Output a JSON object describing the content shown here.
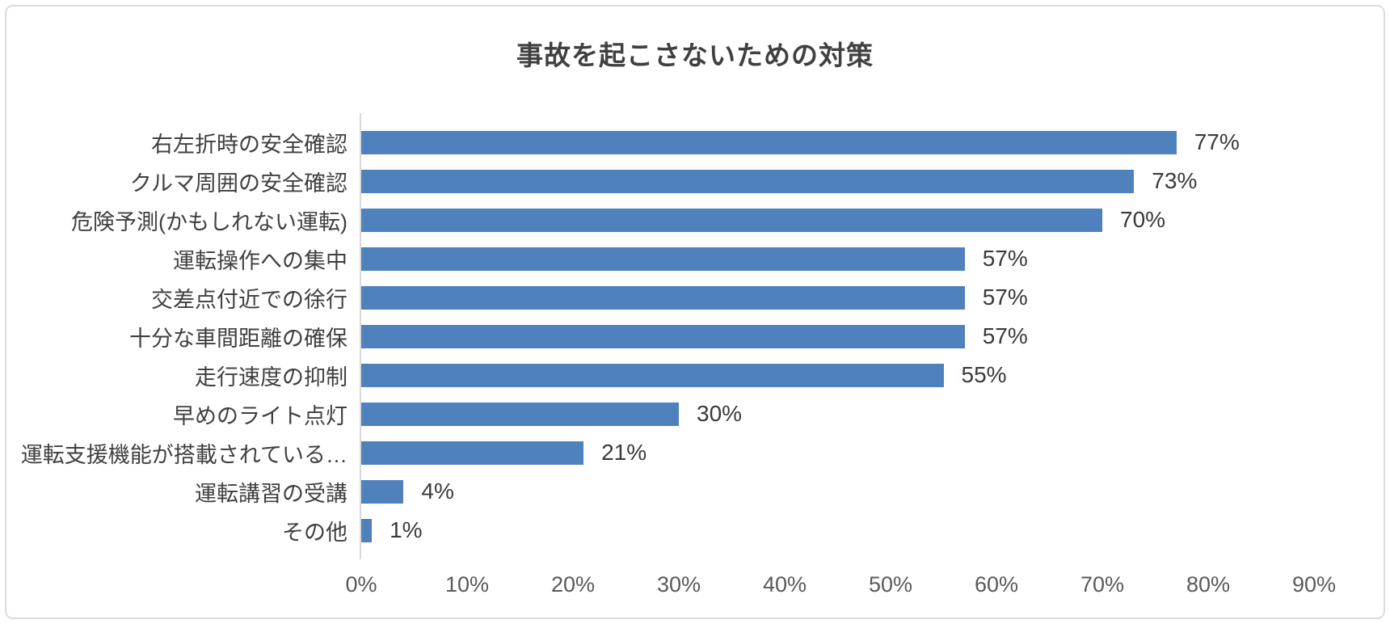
{
  "chart_data": {
    "type": "bar",
    "orientation": "horizontal",
    "title": "事故を起こさないための対策",
    "categories": [
      "右左折時の安全確認",
      "クルマ周囲の安全確認",
      "危険予測(かもしれない運転)",
      "運転操作への集中",
      "交差点付近での徐行",
      "十分な車間距離の確保",
      "走行速度の抑制",
      "早めのライト点灯",
      "運転支援機能が搭載されている…",
      "運転講習の受講",
      "その他"
    ],
    "values": [
      77,
      73,
      70,
      57,
      57,
      57,
      55,
      30,
      21,
      4,
      1
    ],
    "value_labels": [
      "77%",
      "73%",
      "70%",
      "57%",
      "57%",
      "57%",
      "55%",
      "30%",
      "21%",
      "4%",
      "1%"
    ],
    "xlabel": "",
    "ylabel": "",
    "xlim": [
      0,
      90
    ],
    "x_ticks": [
      "0%",
      "10%",
      "20%",
      "30%",
      "40%",
      "50%",
      "60%",
      "70%",
      "80%",
      "90%"
    ],
    "grid": false,
    "legend": "none",
    "value_labels_position": "end-of-bar",
    "colors": {
      "bar": "#4F81BD",
      "title": "#404040",
      "label": "#404040",
      "value": "#3a3a3a",
      "tick": "#595959",
      "axis_line": "#d9d9d9",
      "border": "#dcdcdc"
    }
  }
}
